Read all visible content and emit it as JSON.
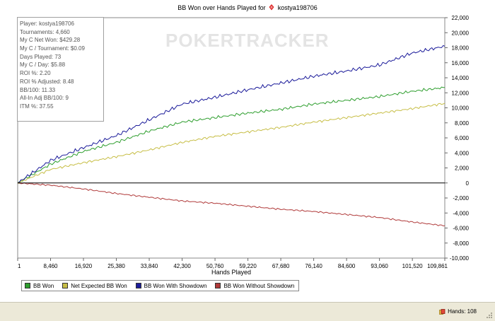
{
  "window": {
    "status_hands": "Hands: 108"
  },
  "colors": {
    "bb_won": "#2e9e2e",
    "net_expected": "#c7be46",
    "with_showdown": "#1b1b9a",
    "without_showdown": "#b03a3a",
    "zero_line": "#000000"
  },
  "icons": {
    "title": "poker-chip-icon",
    "status": "hands-icon"
  },
  "chart": {
    "title_prefix": "BB Won over Hands Played for",
    "player_name": "kostya198706",
    "watermark": "POKERTRACKER",
    "xlabel": "Hands Played"
  },
  "stats": [
    "Player: kostya198706",
    "Tournaments: 4,660",
    "My C Net Won: $429.28",
    "My C / Tournament: $0.09",
    "Days Played: 73",
    "My C / Day: $5.88",
    "ROI %: 2.20",
    "ROI % Adjusted: 8.48",
    "BB/100: 11.33",
    "All-In Adj BB/100: 9",
    "ITM %: 37.55"
  ],
  "legend": [
    "BB Won",
    "Net Expected BB Won",
    "BB Won With Showdown",
    "BB Won Without Showdown"
  ],
  "chart_data": {
    "type": "line",
    "title": "BB Won over Hands Played for kostya198706",
    "xlabel": "Hands Played",
    "ylabel": "",
    "x_ticks": [
      "1",
      "8,460",
      "16,920",
      "25,380",
      "33,840",
      "42,300",
      "50,760",
      "59,220",
      "67,680",
      "76,140",
      "84,600",
      "93,060",
      "101,520",
      "109,861"
    ],
    "y_ticks": [
      "22,000",
      "20,000",
      "18,000",
      "16,000",
      "14,000",
      "12,000",
      "10,000",
      "8,000",
      "6,000",
      "4,000",
      "2,000",
      "0",
      "-2,000",
      "-4,000",
      "-6,000",
      "-8,000",
      "-10,000"
    ],
    "xlim": [
      1,
      109861
    ],
    "ylim": [
      -10000,
      22000
    ],
    "grid": false,
    "legend_position": "bottom-left",
    "x": [
      1,
      8460,
      16920,
      25380,
      33840,
      42300,
      50760,
      59220,
      67680,
      76140,
      84600,
      93060,
      101520,
      109861
    ],
    "series": [
      {
        "name": "BB Won",
        "values": [
          0,
          2500,
          4200,
          5400,
          6900,
          8100,
          8700,
          9300,
          9800,
          10500,
          11000,
          11500,
          12200,
          12700
        ]
      },
      {
        "name": "Net Expected BB Won",
        "values": [
          0,
          1800,
          2700,
          3500,
          4400,
          5400,
          6200,
          6800,
          7400,
          8100,
          8700,
          9300,
          9900,
          10600
        ]
      },
      {
        "name": "BB Won With Showdown",
        "values": [
          0,
          3000,
          4700,
          6300,
          8400,
          10500,
          11400,
          12400,
          13300,
          14200,
          14900,
          15700,
          17300,
          18200
        ]
      },
      {
        "name": "BB Won Without Showdown",
        "values": [
          0,
          -300,
          -800,
          -1400,
          -1900,
          -2400,
          -2700,
          -3100,
          -3500,
          -3800,
          -4200,
          -4600,
          -5200,
          -5700
        ]
      }
    ]
  }
}
